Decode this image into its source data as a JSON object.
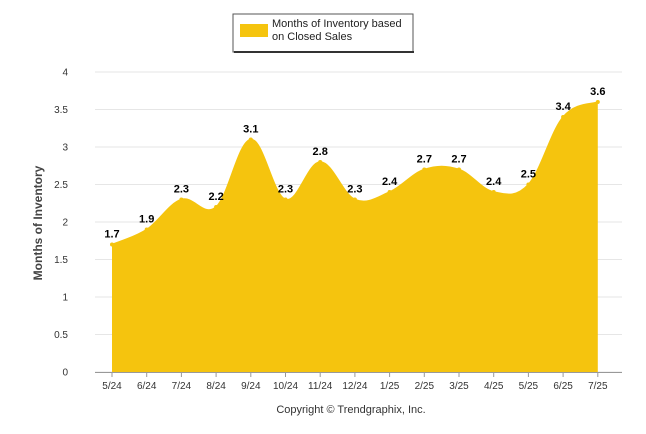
{
  "chart_data": {
    "type": "area",
    "categories": [
      "5/24",
      "6/24",
      "7/24",
      "8/24",
      "9/24",
      "10/24",
      "11/24",
      "12/24",
      "1/25",
      "2/25",
      "3/25",
      "4/25",
      "5/25",
      "6/25",
      "7/25"
    ],
    "series": [
      {
        "name": "Months of Inventory based on Closed Sales",
        "values": [
          1.7,
          1.9,
          2.3,
          2.2,
          3.1,
          2.3,
          2.8,
          2.3,
          2.4,
          2.7,
          2.7,
          2.4,
          2.5,
          3.4,
          3.6
        ],
        "labels": [
          "1.7",
          "1.9",
          "2.3",
          "2.2",
          "3.1",
          "2.3",
          "2.8",
          "2.3",
          "2.4",
          "2.7",
          "2.7",
          "2.4",
          "2.5",
          "3.4",
          "3.6"
        ],
        "color": "#F5C40E"
      }
    ],
    "ylabel": "Months of Inventory",
    "ylim": [
      0,
      4
    ],
    "yticks": [
      "0",
      "0.5",
      "1",
      "1.5",
      "2",
      "2.5",
      "3",
      "3.5",
      "4"
    ],
    "grid": true,
    "legend_position": "top-center",
    "legend_lines": [
      "Months of Inventory based",
      "on Closed Sales"
    ]
  },
  "footer": {
    "copyright": "Copyright © Trendgraphix, Inc."
  },
  "colors": {
    "area": "#F5C40E",
    "grid": "#E6E6E6",
    "axis": "#999999"
  }
}
